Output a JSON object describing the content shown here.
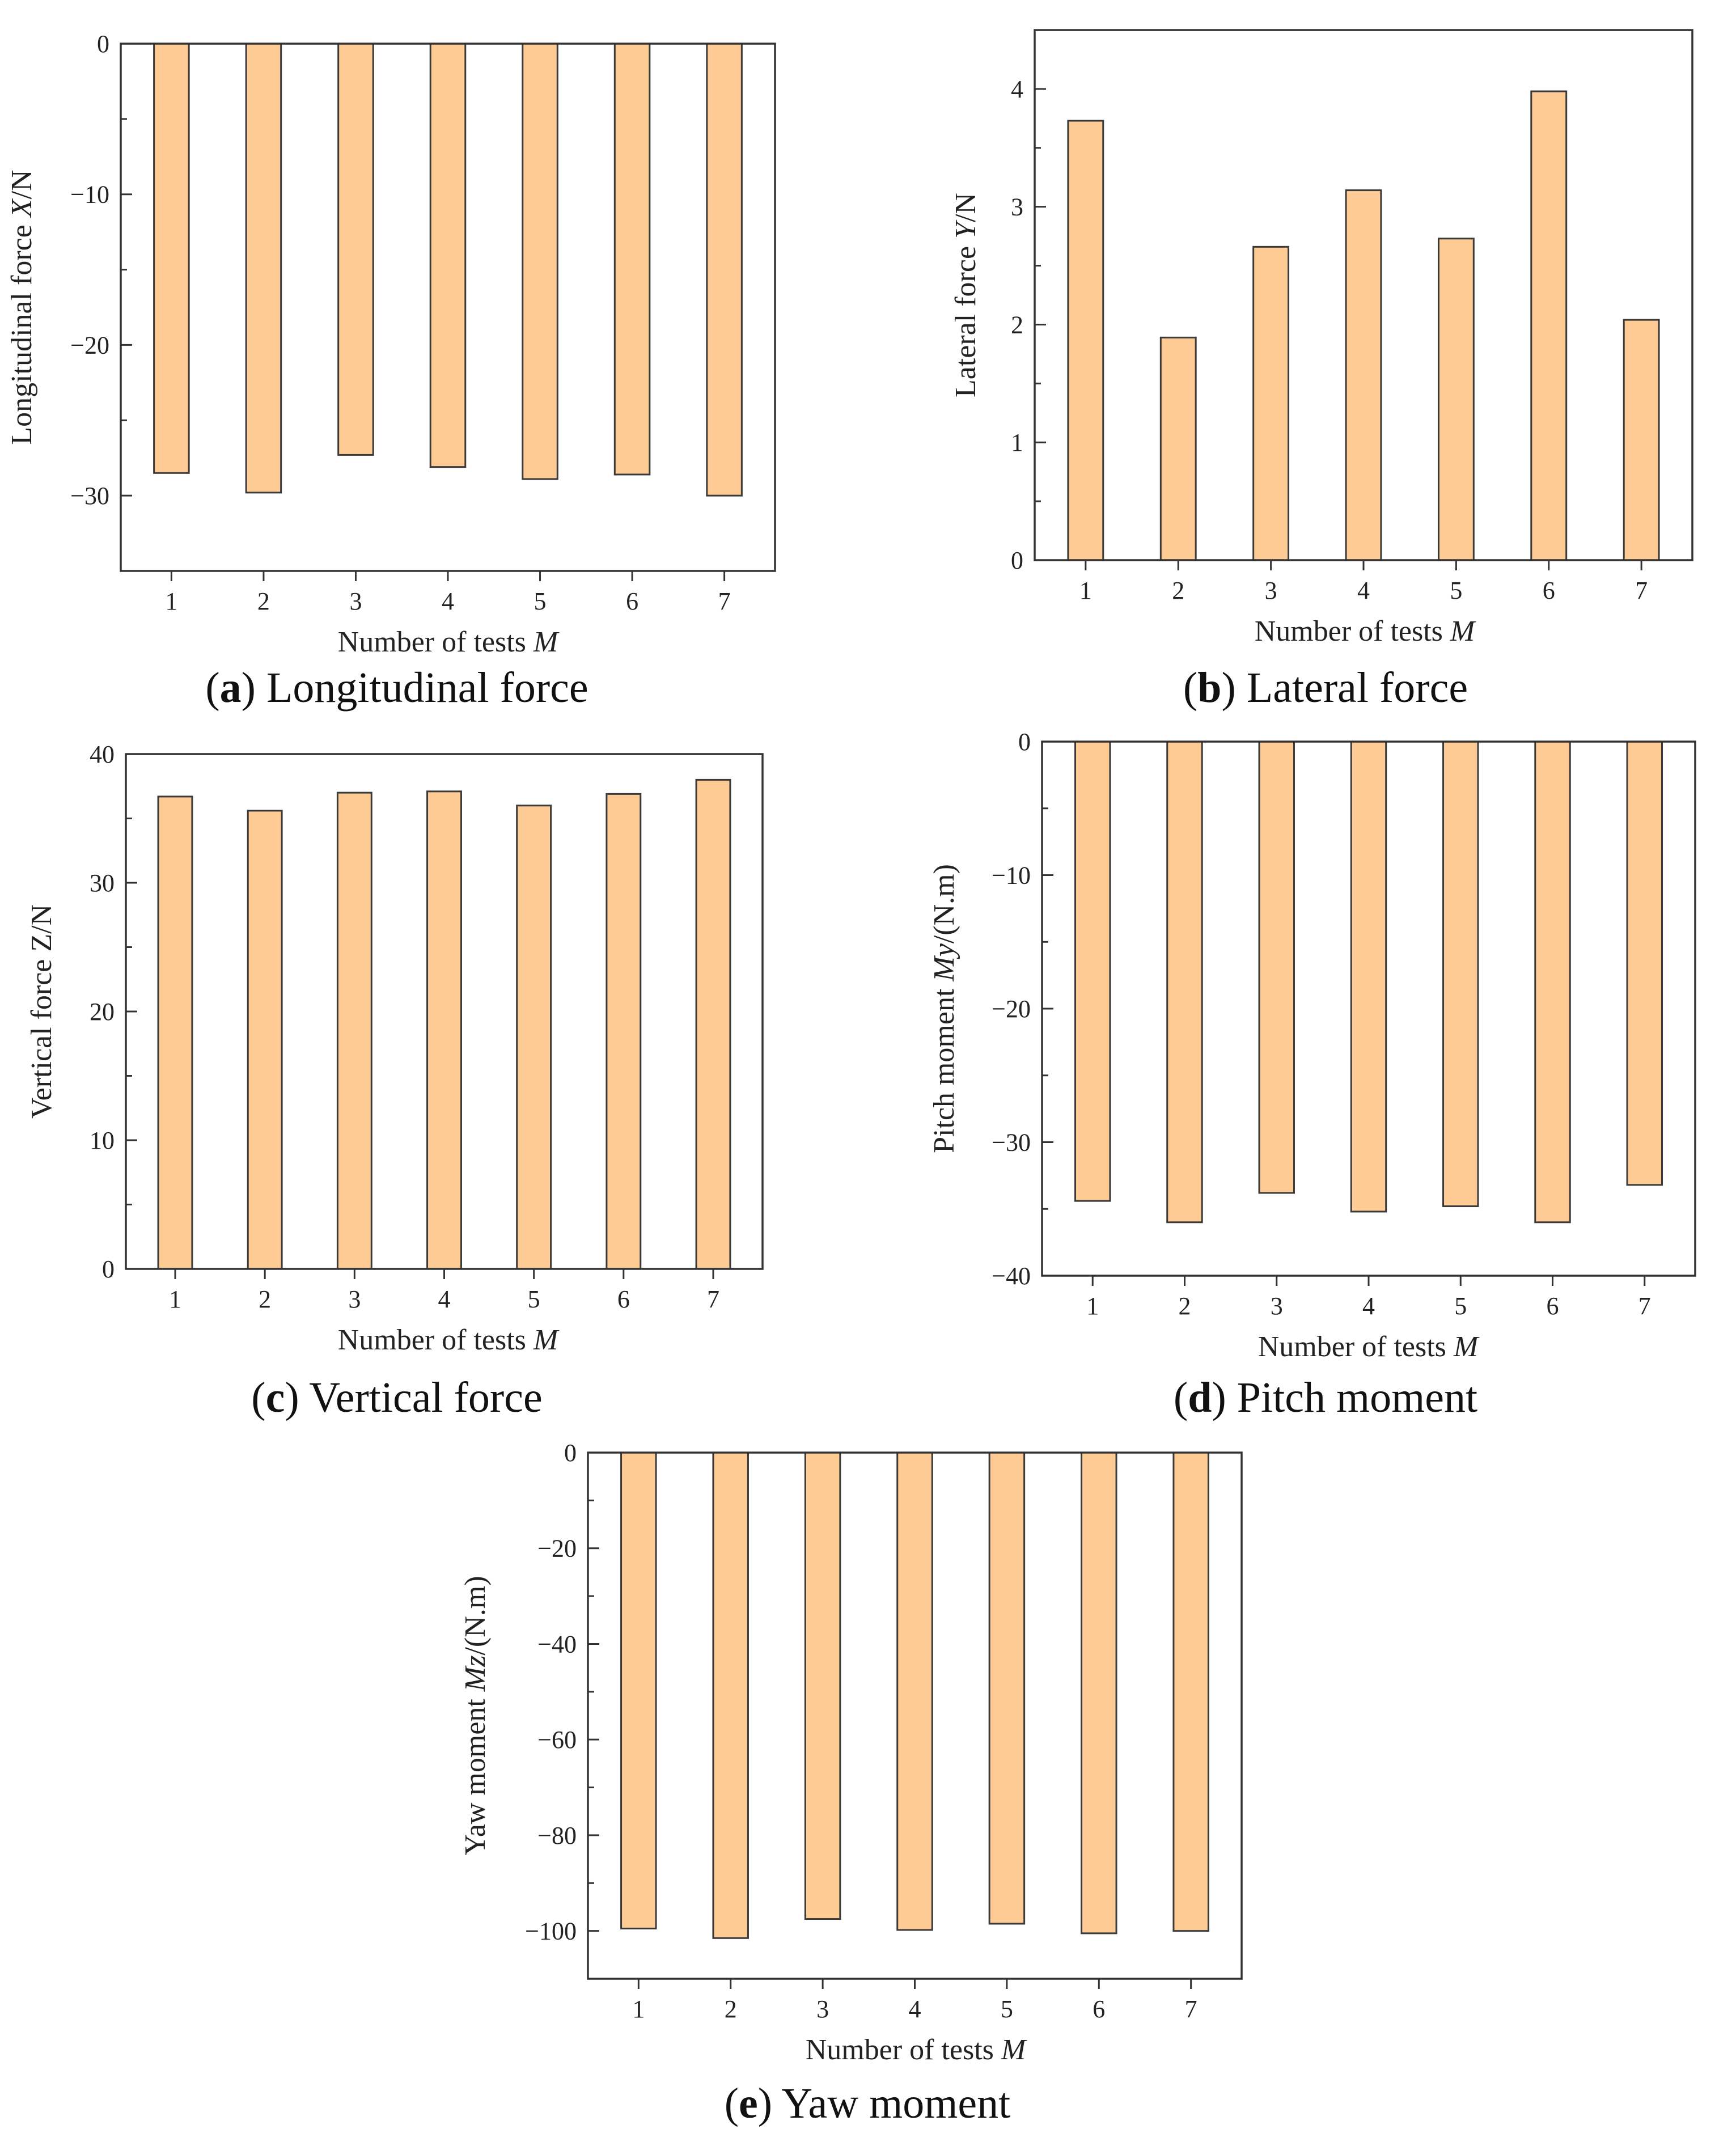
{
  "figure": {
    "background": "#ffffff",
    "bar_color": "#FFCB94",
    "bar_stroke": "#3a3a3a"
  },
  "chart_data": [
    {
      "id": "a",
      "type": "bar",
      "caption_letter": "a",
      "caption_text": ") Longitudinal force",
      "xlabel_text": "Number of tests ",
      "xlabel_var": "M",
      "ylabel_text": "Longitudinal force ",
      "ylabel_var": "X",
      "ylabel_suffix": "/N",
      "categories": [
        "1",
        "2",
        "3",
        "4",
        "5",
        "6",
        "7"
      ],
      "values": [
        -28.5,
        -29.8,
        -27.3,
        -28.1,
        -28.9,
        -28.6,
        -30.0
      ],
      "ylim": [
        -35,
        0
      ],
      "yticks": [
        {
          "v": 0,
          "label": "0"
        },
        {
          "v": -10,
          "label": "−10"
        },
        {
          "v": -20,
          "label": "−20"
        },
        {
          "v": -30,
          "label": "−30"
        }
      ],
      "yminor": [
        -5,
        -15,
        -25,
        -35
      ]
    },
    {
      "id": "b",
      "type": "bar",
      "caption_letter": "b",
      "caption_text": ") Lateral force",
      "xlabel_text": "Number of tests ",
      "xlabel_var": "M",
      "ylabel_text": "Lateral force ",
      "ylabel_var": "Y",
      "ylabel_suffix": "/N",
      "categories": [
        "1",
        "2",
        "3",
        "4",
        "5",
        "6",
        "7"
      ],
      "values": [
        3.73,
        1.89,
        2.66,
        3.14,
        2.73,
        3.98,
        2.04
      ],
      "ylim": [
        0,
        4.5
      ],
      "yticks": [
        {
          "v": 0,
          "label": "0"
        },
        {
          "v": 1,
          "label": "1"
        },
        {
          "v": 2,
          "label": "2"
        },
        {
          "v": 3,
          "label": "3"
        },
        {
          "v": 4,
          "label": "4"
        }
      ],
      "yminor": [
        0.5,
        1.5,
        2.5,
        3.5,
        4.5
      ]
    },
    {
      "id": "c",
      "type": "bar",
      "caption_letter": "c",
      "caption_text": ") Vertical force",
      "xlabel_text": "Number of tests ",
      "xlabel_var": "M",
      "ylabel_text": "Vertical force Z/N",
      "ylabel_var": "",
      "ylabel_suffix": "",
      "categories": [
        "1",
        "2",
        "3",
        "4",
        "5",
        "6",
        "7"
      ],
      "values": [
        36.7,
        35.6,
        37.0,
        37.1,
        36.0,
        36.9,
        38.0
      ],
      "ylim": [
        0,
        40
      ],
      "yticks": [
        {
          "v": 0,
          "label": "0"
        },
        {
          "v": 10,
          "label": "10"
        },
        {
          "v": 20,
          "label": "20"
        },
        {
          "v": 30,
          "label": "30"
        },
        {
          "v": 40,
          "label": "40"
        }
      ],
      "yminor": [
        5,
        15,
        25,
        35
      ]
    },
    {
      "id": "d",
      "type": "bar",
      "caption_letter": "d",
      "caption_text": ") Pitch moment",
      "xlabel_text": "Number of tests ",
      "xlabel_var": "M",
      "ylabel_text": "Pitch moment ",
      "ylabel_var": "My",
      "ylabel_suffix": "/(N.m)",
      "categories": [
        "1",
        "2",
        "3",
        "4",
        "5",
        "6",
        "7"
      ],
      "values": [
        -34.4,
        -36.0,
        -33.8,
        -35.2,
        -34.8,
        -36.0,
        -33.2
      ],
      "ylim": [
        -40,
        0
      ],
      "yticks": [
        {
          "v": 0,
          "label": "0"
        },
        {
          "v": -10,
          "label": "−10"
        },
        {
          "v": -20,
          "label": "−20"
        },
        {
          "v": -30,
          "label": "−30"
        },
        {
          "v": -40,
          "label": "−40"
        }
      ],
      "yminor": [
        -5,
        -15,
        -25,
        -35
      ]
    },
    {
      "id": "e",
      "type": "bar",
      "caption_letter": "e",
      "caption_text": ") Yaw moment",
      "xlabel_text": "Number of tests ",
      "xlabel_var": "M",
      "ylabel_text": "Yaw moment ",
      "ylabel_var": "Mz",
      "ylabel_suffix": "/(N.m)",
      "categories": [
        "1",
        "2",
        "3",
        "4",
        "5",
        "6",
        "7"
      ],
      "values": [
        -99.5,
        -101.5,
        -97.5,
        -99.8,
        -98.5,
        -100.5,
        -100.0
      ],
      "ylim": [
        -110,
        0
      ],
      "yticks": [
        {
          "v": 0,
          "label": "0"
        },
        {
          "v": -20,
          "label": "−20"
        },
        {
          "v": -40,
          "label": "−40"
        },
        {
          "v": -60,
          "label": "−60"
        },
        {
          "v": -80,
          "label": "−80"
        },
        {
          "v": -100,
          "label": "−100"
        }
      ],
      "yminor": [
        -10,
        -30,
        -50,
        -70,
        -90,
        -110
      ]
    }
  ]
}
